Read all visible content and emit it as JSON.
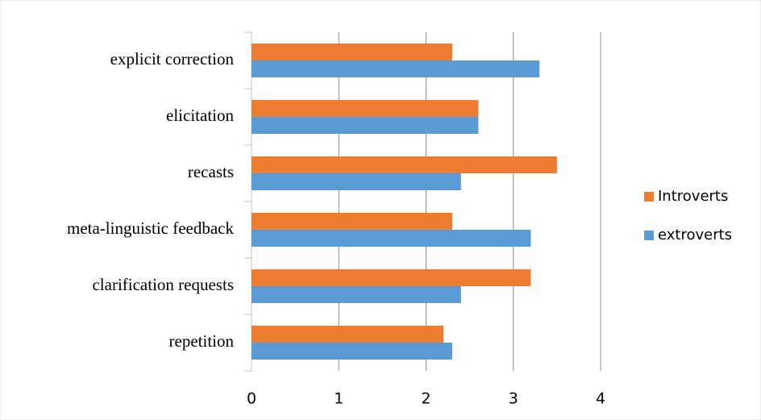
{
  "chart_data": {
    "type": "hbar",
    "categories": [
      "explicit correction",
      "elicitation",
      "recasts",
      "meta-linguistic feedback",
      "clarification requests",
      "repetition"
    ],
    "series": [
      {
        "name": "Introverts",
        "color": "#ed7d31",
        "values": [
          2.3,
          2.6,
          3.5,
          2.3,
          3.2,
          2.2
        ]
      },
      {
        "name": "extroverts",
        "color": "#5b9bd5",
        "values": [
          3.3,
          2.6,
          2.4,
          3.2,
          2.4,
          2.3
        ]
      }
    ],
    "xlim": [
      0,
      4
    ],
    "xticks": [
      0,
      1,
      2,
      3,
      4
    ],
    "grid": true,
    "legend": "right"
  }
}
